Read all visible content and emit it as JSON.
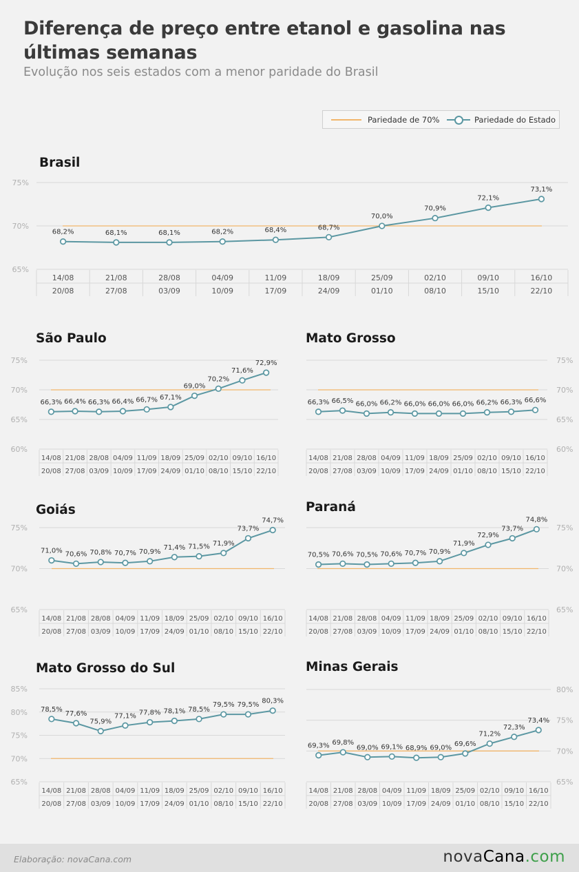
{
  "header": {
    "title": "Diferença de preço entre etanol e gasolina nas últimas semanas",
    "subtitle": "Evolução nos seis estados com a menor paridade do Brasil"
  },
  "legend": {
    "reference": "Pariedade de 70%",
    "state": "Pariedade do Estado"
  },
  "colors": {
    "reference": "#f1b56a",
    "series": "#5b97a2",
    "grid": "#d8d8d8",
    "axis_label": "#b0b0b0",
    "table_text": "#555555"
  },
  "footer": {
    "credit": "Elaboração: novaCana.com",
    "brand_main": "nova",
    "brand_accent": "Cana",
    "brand_dot": ".",
    "brand_tld": "com"
  },
  "chart_data": [
    {
      "type": "line",
      "title": "Brasil",
      "axis_side": "left",
      "y_ticks": [
        "75%",
        "70%",
        "65%"
      ],
      "ylim": [
        65,
        75
      ],
      "reference": 70,
      "week_start": [
        "14/08",
        "21/08",
        "28/08",
        "04/09",
        "11/09",
        "18/09",
        "25/09",
        "02/10",
        "09/10",
        "16/10"
      ],
      "week_end": [
        "20/08",
        "27/08",
        "03/09",
        "10/09",
        "17/09",
        "24/09",
        "01/10",
        "08/10",
        "15/10",
        "22/10"
      ],
      "values": [
        68.2,
        68.1,
        68.1,
        68.2,
        68.4,
        68.7,
        70.0,
        70.9,
        72.1,
        73.1
      ],
      "labels": [
        "68,2%",
        "68,1%",
        "68,1%",
        "68,2%",
        "68,4%",
        "68,7%",
        "70,0%",
        "70,9%",
        "72,1%",
        "73,1%"
      ]
    },
    {
      "type": "line",
      "title": "São Paulo",
      "axis_side": "left",
      "y_ticks": [
        "75%",
        "70%",
        "65%",
        "60%"
      ],
      "ylim": [
        60,
        75
      ],
      "reference": 70,
      "week_start": [
        "14/08",
        "21/08",
        "28/08",
        "04/09",
        "11/09",
        "18/09",
        "25/09",
        "02/10",
        "09/10",
        "16/10"
      ],
      "week_end": [
        "20/08",
        "27/08",
        "03/09",
        "10/09",
        "17/09",
        "24/09",
        "01/10",
        "08/10",
        "15/10",
        "22/10"
      ],
      "values": [
        66.3,
        66.4,
        66.3,
        66.4,
        66.7,
        67.1,
        69.0,
        70.2,
        71.6,
        72.9
      ],
      "labels": [
        "66,3%",
        "66,4%",
        "66,3%",
        "66,4%",
        "66,7%",
        "67,1%",
        "69,0%",
        "70,2%",
        "71,6%",
        "72,9%"
      ]
    },
    {
      "type": "line",
      "title": "Mato Grosso",
      "axis_side": "right",
      "y_ticks": [
        "75%",
        "70%",
        "65%",
        "60%"
      ],
      "ylim": [
        60,
        75
      ],
      "reference": 70,
      "week_start": [
        "14/08",
        "21/08",
        "28/08",
        "04/09",
        "11/09",
        "18/09",
        "25/09",
        "02/10",
        "09/10",
        "16/10"
      ],
      "week_end": [
        "20/08",
        "27/08",
        "03/09",
        "10/09",
        "17/09",
        "24/09",
        "01/10",
        "08/10",
        "15/10",
        "22/10"
      ],
      "values": [
        66.3,
        66.5,
        66.0,
        66.2,
        66.0,
        66.0,
        66.0,
        66.2,
        66.3,
        66.6
      ],
      "labels": [
        "66,3%",
        "66,5%",
        "66,0%",
        "66,2%",
        "66,0%",
        "66,0%",
        "66,0%",
        "66,2%",
        "66,3%",
        "66,6%"
      ]
    },
    {
      "type": "line",
      "title": "Goiás",
      "axis_side": "left",
      "y_ticks": [
        "75%",
        "70%",
        "65%"
      ],
      "ylim": [
        65,
        75
      ],
      "reference": 70,
      "week_start": [
        "14/08",
        "21/08",
        "28/08",
        "04/09",
        "11/09",
        "18/09",
        "25/09",
        "02/10",
        "09/10",
        "16/10"
      ],
      "week_end": [
        "20/08",
        "27/08",
        "03/09",
        "10/09",
        "17/09",
        "24/09",
        "01/10",
        "08/10",
        "15/10",
        "22/10"
      ],
      "values": [
        71.0,
        70.6,
        70.8,
        70.7,
        70.9,
        71.4,
        71.5,
        71.9,
        73.7,
        74.7
      ],
      "labels": [
        "71,0%",
        "70,6%",
        "70,8%",
        "70,7%",
        "70,9%",
        "71,4%",
        "71,5%",
        "71,9%",
        "73,7%",
        "74,7%"
      ]
    },
    {
      "type": "line",
      "title": "Paraná",
      "axis_side": "right",
      "y_ticks": [
        "75%",
        "70%",
        "65%"
      ],
      "ylim": [
        65,
        75
      ],
      "reference": 70,
      "week_start": [
        "14/08",
        "21/08",
        "28/08",
        "04/09",
        "11/09",
        "18/09",
        "25/09",
        "02/10",
        "09/10",
        "16/10"
      ],
      "week_end": [
        "20/08",
        "27/08",
        "03/09",
        "10/09",
        "17/09",
        "24/09",
        "01/10",
        "08/10",
        "15/10",
        "22/10"
      ],
      "values": [
        70.5,
        70.6,
        70.5,
        70.6,
        70.7,
        70.9,
        71.9,
        72.9,
        73.7,
        74.8
      ],
      "labels": [
        "70,5%",
        "70,6%",
        "70,5%",
        "70,6%",
        "70,7%",
        "70,9%",
        "71,9%",
        "72,9%",
        "73,7%",
        "74,8%"
      ]
    },
    {
      "type": "line",
      "title": "Mato Grosso do Sul",
      "axis_side": "left",
      "y_ticks": [
        "85%",
        "80%",
        "75%",
        "70%",
        "65%"
      ],
      "ylim": [
        65,
        85
      ],
      "reference": 70,
      "week_start": [
        "14/08",
        "21/08",
        "28/08",
        "04/09",
        "11/09",
        "18/09",
        "25/09",
        "02/10",
        "09/10",
        "16/10"
      ],
      "week_end": [
        "20/08",
        "27/08",
        "03/09",
        "10/09",
        "17/09",
        "24/09",
        "01/10",
        "08/10",
        "15/10",
        "22/10"
      ],
      "values": [
        78.5,
        77.6,
        75.9,
        77.1,
        77.8,
        78.1,
        78.5,
        79.5,
        79.5,
        80.3
      ],
      "labels": [
        "78,5%",
        "77,6%",
        "75,9%",
        "77,1%",
        "77,8%",
        "78,1%",
        "78,5%",
        "79,5%",
        "79,5%",
        "80,3%"
      ]
    },
    {
      "type": "line",
      "title": "Minas Gerais",
      "axis_side": "right",
      "y_ticks": [
        "80%",
        "75%",
        "70%",
        "65%"
      ],
      "ylim": [
        65,
        80
      ],
      "reference": 70,
      "week_start": [
        "14/08",
        "21/08",
        "28/08",
        "04/09",
        "11/09",
        "18/09",
        "25/09",
        "02/10",
        "09/10",
        "16/10"
      ],
      "week_end": [
        "20/08",
        "27/08",
        "03/09",
        "10/09",
        "17/09",
        "24/09",
        "01/10",
        "08/10",
        "15/10",
        "22/10"
      ],
      "values": [
        69.3,
        69.8,
        69.0,
        69.1,
        68.9,
        69.0,
        69.6,
        71.2,
        72.3,
        73.4
      ],
      "labels": [
        "69,3%",
        "69,8%",
        "69,0%",
        "69,1%",
        "68,9%",
        "69,0%",
        "69,6%",
        "71,2%",
        "72,3%",
        "73,4%"
      ]
    }
  ]
}
